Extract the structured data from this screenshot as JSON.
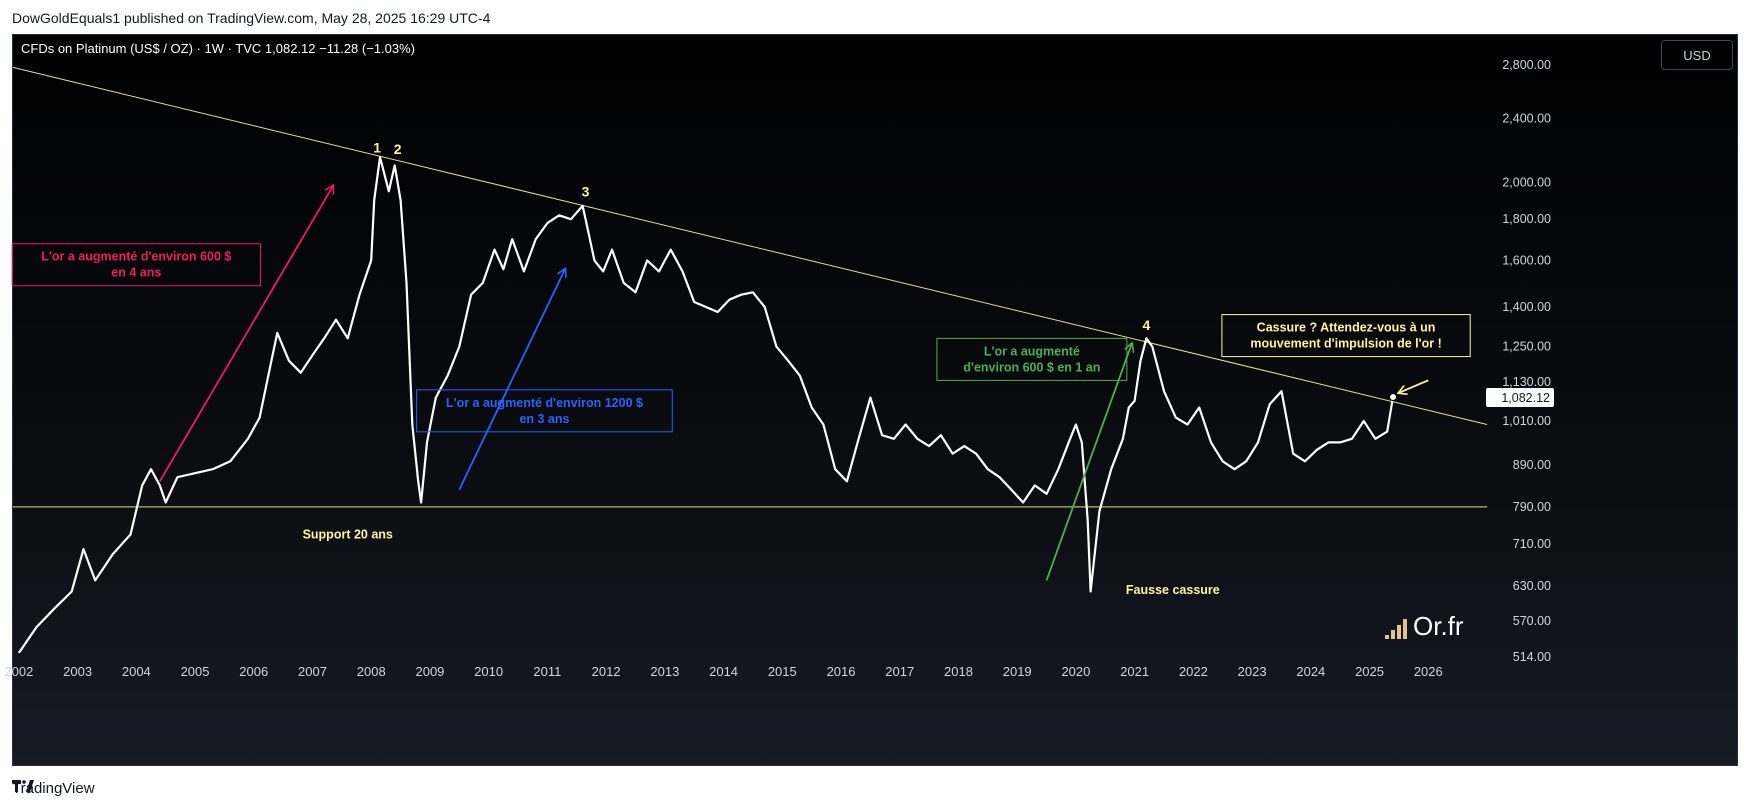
{
  "header": {
    "published_by": "DowGoldEquals1 published on TradingView.com, May 28, 2025 16:29 UTC-4"
  },
  "footer": {
    "brand": "TradingView"
  },
  "toolbar": {
    "currency_button": "USD"
  },
  "chart_data": {
    "type": "line",
    "title": "CFDs on Platinum (US$ / OZ) · 1W · TVC  1,082.12  −11.28 (−1.03%)",
    "last_price_label": "1,082.12",
    "y_scale": "log",
    "ylim": [
      514,
      3050
    ],
    "xlim": [
      2001.9,
      2027.0
    ],
    "y_ticks": [
      514,
      570,
      630,
      710,
      790,
      890,
      1010,
      1130,
      1250,
      1400,
      1600,
      1800,
      2000,
      2400,
      2800
    ],
    "y_tick_labels": [
      "514.00",
      "570.00",
      "630.00",
      "710.00",
      "790.00",
      "890.00",
      "1,010.00",
      "1,130.00",
      "1,250.00",
      "1,400.00",
      "1,600.00",
      "1,800.00",
      "2,000.00",
      "2,400.00",
      "2,800.00"
    ],
    "x_ticks": [
      "2002",
      "2003",
      "2004",
      "2005",
      "2006",
      "2007",
      "2008",
      "2009",
      "2010",
      "2011",
      "2012",
      "2013",
      "2014",
      "2015",
      "2016",
      "2017",
      "2018",
      "2019",
      "2020",
      "2021",
      "2022",
      "2023",
      "2024",
      "2025",
      "2026"
    ],
    "series": [
      {
        "x": [
          2002.0,
          2002.3,
          2002.6,
          2002.9,
          2003.1,
          2003.3,
          2003.6,
          2003.9,
          2004.1,
          2004.25,
          2004.4,
          2004.5,
          2004.7,
          2005.0,
          2005.3,
          2005.6,
          2005.9,
          2006.1,
          2006.3,
          2006.4,
          2006.6,
          2006.8,
          2007.0,
          2007.2,
          2007.4,
          2007.6,
          2007.8,
          2008.0,
          2008.05,
          2008.15,
          2008.3,
          2008.4,
          2008.5,
          2008.6,
          2008.7,
          2008.8,
          2008.85,
          2008.95,
          2009.1,
          2009.3,
          2009.5,
          2009.7,
          2009.9,
          2010.1,
          2010.25,
          2010.4,
          2010.6,
          2010.8,
          2011.0,
          2011.2,
          2011.4,
          2011.6,
          2011.65,
          2011.8,
          2011.95,
          2012.1,
          2012.3,
          2012.5,
          2012.7,
          2012.9,
          2013.1,
          2013.3,
          2013.5,
          2013.7,
          2013.9,
          2014.1,
          2014.3,
          2014.5,
          2014.7,
          2014.9,
          2015.1,
          2015.3,
          2015.5,
          2015.7,
          2015.9,
          2016.1,
          2016.3,
          2016.5,
          2016.7,
          2016.9,
          2017.1,
          2017.3,
          2017.5,
          2017.7,
          2017.9,
          2018.1,
          2018.3,
          2018.5,
          2018.7,
          2018.9,
          2019.1,
          2019.3,
          2019.5,
          2019.7,
          2019.9,
          2020.0,
          2020.1,
          2020.2,
          2020.25,
          2020.4,
          2020.6,
          2020.8,
          2020.9,
          2021.0,
          2021.1,
          2021.2,
          2021.3,
          2021.5,
          2021.7,
          2021.9,
          2022.1,
          2022.3,
          2022.5,
          2022.7,
          2022.9,
          2023.1,
          2023.3,
          2023.5,
          2023.7,
          2023.9,
          2024.1,
          2024.3,
          2024.5,
          2024.7,
          2024.9,
          2025.1,
          2025.3,
          2025.4
        ],
        "y": [
          520,
          560,
          590,
          620,
          700,
          640,
          690,
          730,
          840,
          880,
          840,
          800,
          860,
          870,
          880,
          900,
          960,
          1020,
          1200,
          1300,
          1200,
          1160,
          1220,
          1280,
          1350,
          1280,
          1450,
          1600,
          1900,
          2150,
          1950,
          2100,
          1900,
          1500,
          1000,
          850,
          800,
          950,
          1080,
          1150,
          1250,
          1450,
          1500,
          1650,
          1560,
          1700,
          1550,
          1700,
          1780,
          1820,
          1800,
          1870,
          1800,
          1600,
          1550,
          1650,
          1500,
          1460,
          1600,
          1550,
          1650,
          1550,
          1420,
          1400,
          1380,
          1430,
          1450,
          1460,
          1400,
          1250,
          1200,
          1150,
          1050,
          1000,
          880,
          850,
          960,
          1080,
          970,
          960,
          1000,
          960,
          940,
          970,
          920,
          940,
          920,
          880,
          860,
          830,
          800,
          840,
          820,
          880,
          960,
          1000,
          950,
          760,
          620,
          780,
          880,
          960,
          1050,
          1070,
          1200,
          1280,
          1250,
          1100,
          1020,
          1000,
          1050,
          950,
          900,
          880,
          900,
          950,
          1060,
          1100,
          920,
          900,
          930,
          950,
          950,
          960,
          1010,
          960,
          980,
          1082
        ]
      }
    ],
    "lines": [
      {
        "name": "resistance",
        "x": [
          2001.9,
          2027.0
        ],
        "y": [
          2780,
          1000
        ]
      },
      {
        "name": "support",
        "x": [
          2001.9,
          2027.0
        ],
        "y": [
          790,
          790
        ]
      }
    ],
    "wave_labels": [
      {
        "text": "1",
        "x": 2008.1,
        "y": 2180
      },
      {
        "text": "2",
        "x": 2008.45,
        "y": 2170
      },
      {
        "text": "3",
        "x": 2011.65,
        "y": 1920
      },
      {
        "text": "4",
        "x": 2021.2,
        "y": 1310
      }
    ],
    "annotations": [
      {
        "text_lines": [
          "L'or a augmenté d'environ 600 $",
          "en 4 ans"
        ],
        "color": "#e91e63",
        "x": 2004.0,
        "y": 1580
      },
      {
        "text_lines": [
          "L'or a augmenté d'environ 1200 $",
          "en 3 ans"
        ],
        "color": "#2962ff",
        "x": 2010.95,
        "y": 1040
      },
      {
        "text_lines": [
          "L'or a augmenté",
          "d'environ 600 $ en 1 an"
        ],
        "color": "#4caf50",
        "x": 2019.25,
        "y": 1205
      },
      {
        "text_lines": [
          "Cassure ? Attendez-vous à un",
          "mouvement d'impulsion de l'or !"
        ],
        "color": "#fff59d",
        "x": 2024.6,
        "y": 1290
      },
      {
        "text_lines": [
          "Support 20 ans"
        ],
        "color": "#fff59d",
        "x": 2007.6,
        "y": 730
      },
      {
        "text_lines": [
          "Fausse cassure"
        ],
        "color": "#fff59d",
        "x": 2021.65,
        "y": 623
      }
    ],
    "arrows": [
      {
        "color": "#e91e63",
        "x": [
          2004.4,
          2007.35
        ],
        "y": [
          850,
          1980
        ]
      },
      {
        "color": "#2962ff",
        "x": [
          2009.5,
          2011.3
        ],
        "y": [
          830,
          1560
        ]
      },
      {
        "color": "#4caf50",
        "x": [
          2019.5,
          2020.95
        ],
        "y": [
          640,
          1260
        ]
      },
      {
        "color": "#fff59d",
        "x": [
          2026.0,
          2025.5
        ],
        "y": [
          1135,
          1095
        ]
      }
    ],
    "grid": false,
    "watermark": "Or.fr"
  }
}
